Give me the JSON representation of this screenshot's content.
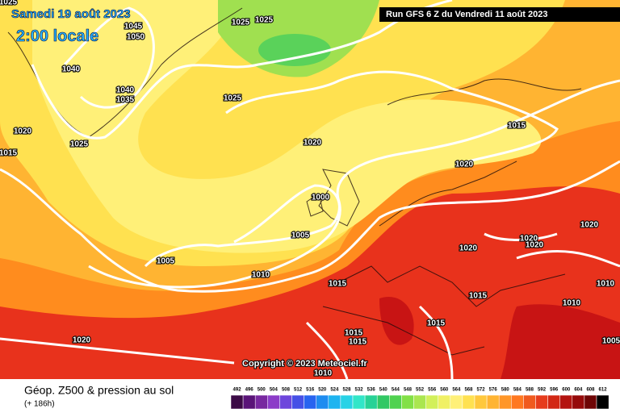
{
  "header": {
    "date": "Samedi 19 août 2023",
    "time": "2:00 locale",
    "run": "Run GFS 6 Z du Vendredi 11 août 2023"
  },
  "copyright": "Copyright © 2023 Meteociel.fr",
  "footer": {
    "title": "Géop. Z500 & pression au sol",
    "lead": "(+ 186h)"
  },
  "isobar_labels": [
    1025,
    1045,
    1050,
    1025,
    1025,
    1040,
    1040,
    1035,
    1025,
    1020,
    1015,
    1025,
    1020,
    1015,
    1020,
    1000,
    1005,
    1005,
    1010,
    1015,
    1020,
    1020,
    1020,
    1020,
    1015,
    1010,
    1010,
    1015,
    1015,
    1015,
    1020,
    1010,
    1005
  ],
  "scale": {
    "values": [
      492,
      496,
      500,
      504,
      508,
      512,
      516,
      520,
      524,
      528,
      532,
      536,
      540,
      544,
      548,
      552,
      556,
      560,
      564,
      568,
      572,
      576,
      580,
      584,
      588,
      592,
      596,
      600,
      604,
      608,
      612
    ],
    "colors": [
      "#3c0a46",
      "#5a1478",
      "#7828a0",
      "#8c3cc8",
      "#6e46dc",
      "#4650e6",
      "#2864f0",
      "#1e8cf0",
      "#1eb4f0",
      "#28d2e6",
      "#32e6c8",
      "#28d296",
      "#32c864",
      "#50d250",
      "#82e046",
      "#aae650",
      "#d2f05a",
      "#f0f064",
      "#fff078",
      "#ffe150",
      "#ffc83c",
      "#ffb432",
      "#ff9628",
      "#ff7820",
      "#f05a1e",
      "#e63c1c",
      "#d22814",
      "#b41410",
      "#960a0a",
      "#6e0505",
      "#000000"
    ]
  }
}
